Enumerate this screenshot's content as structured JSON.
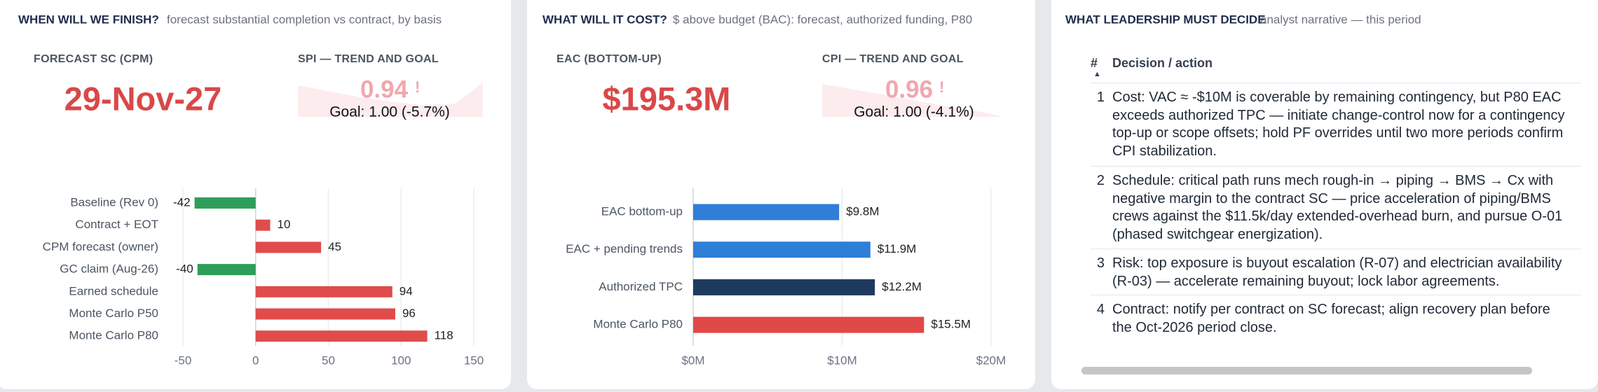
{
  "schedule": {
    "title": "WHEN WILL WE FINISH?",
    "subtitle": "forecast substantial completion vs contract, by basis",
    "kpi": {
      "label": "FORECAST SC (CPM)",
      "value": "29-Nov-27"
    },
    "trend": {
      "label": "SPI — TREND AND GOAL",
      "value": 0.94,
      "flag": "!",
      "goal": "Goal: 1.00 (-5.7%)"
    }
  },
  "cost": {
    "title": "WHAT WILL IT COST?",
    "subtitle": "$ above budget (BAC): forecast, authorized funding, P80",
    "kpi": {
      "label": "EAC (BOTTOM-UP)",
      "value": "$195.3M"
    },
    "trend": {
      "label": "CPI — TREND AND GOAL",
      "value": 0.96,
      "flag": "!",
      "goal": "Goal: 1.00 (-4.1%)"
    }
  },
  "chart_data": [
    {
      "type": "hbar",
      "categories": [
        "Baseline (Rev 0)",
        "Contract + EOT",
        "CPM forecast (owner)",
        "GC claim (Aug-26)",
        "Earned schedule",
        "Monte Carlo P50",
        "Monte Carlo P80"
      ],
      "values": [
        -42,
        10,
        45,
        -40,
        94,
        96,
        118
      ],
      "colors": [
        "#2e9e5b",
        "#e04c4c",
        "#e04c4c",
        "#2e9e5b",
        "#e04c4c",
        "#e04c4c",
        "#e04c4c"
      ],
      "xlim": [
        -50,
        150
      ],
      "xticks": [
        -50,
        0,
        50,
        100,
        150
      ],
      "grid": true
    },
    {
      "type": "hbar",
      "categories": [
        "EAC bottom-up",
        "EAC + pending trends",
        "Authorized TPC",
        "Monte Carlo P80"
      ],
      "values": [
        9.8,
        11.9,
        12.2,
        15.5
      ],
      "value_labels": [
        "$9.8M",
        "$11.9M",
        "$12.2M",
        "$15.5M"
      ],
      "colors": [
        "#2f7ed8",
        "#2f7ed8",
        "#1f3a5f",
        "#e04848"
      ],
      "xlim": [
        0,
        20
      ],
      "xticks": [
        {
          "value": 0,
          "label": "$0M"
        },
        {
          "value": 10,
          "label": "$10M"
        },
        {
          "value": 20,
          "label": "$20M"
        }
      ],
      "grid": true
    }
  ],
  "decisions": {
    "title": "WHAT LEADERSHIP MUST DECIDE",
    "subtitle": "analyst narrative — this period",
    "columns": [
      "#",
      "Decision / action"
    ],
    "rows": [
      [
        1,
        "Cost: VAC ≈ -$10M is coverable by remaining contingency, but P80 EAC exceeds authorized TPC — initiate change-control now for a contingency top-up or scope offsets; hold PF overrides until two more periods confirm CPI stabilization."
      ],
      [
        2,
        "Schedule: critical path runs mech rough-in → piping → BMS → Cx with negative margin to the contract SC — price acceleration of piping/BMS crews against the $11.5k/day extended-overhead burn, and pursue O-01 (phased switchgear energization)."
      ],
      [
        3,
        "Risk: top exposure is buyout escalation (R-07) and electrician availability (R-03) — accelerate remaining buyout; lock labor agreements."
      ],
      [
        4,
        "Contract: notify per contract on SC forecast; align recovery plan before the Oct-2026 period close."
      ]
    ]
  }
}
